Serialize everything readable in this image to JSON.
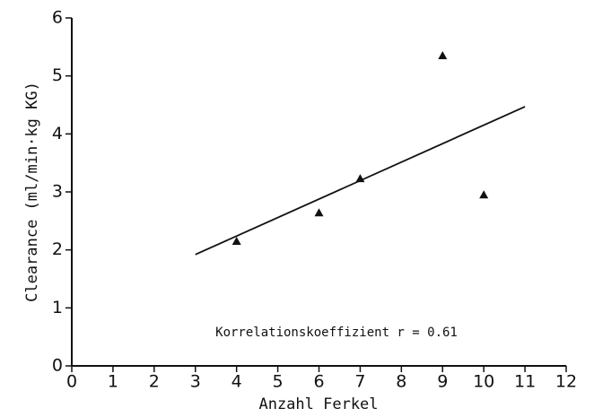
{
  "chart_data": {
    "type": "scatter",
    "x_label": "Anzahl Ferkel",
    "y_label": "Clearance (ml/min·kg KG)",
    "annotation": "Korrelationskoeffizient r = 0.61",
    "x": [
      4,
      6,
      7,
      9,
      10
    ],
    "values": [
      2.15,
      2.64,
      3.23,
      5.35,
      2.95
    ],
    "color": "#111111",
    "trendline": {
      "x": [
        3,
        11
      ],
      "y": [
        1.92,
        4.47
      ]
    },
    "xlim": [
      0,
      12
    ],
    "xticks": [
      0,
      1,
      2,
      3,
      4,
      5,
      6,
      7,
      8,
      9,
      10,
      11,
      12
    ],
    "ylim": [
      0,
      6
    ],
    "yticks": [
      0,
      1,
      2,
      3,
      4,
      5,
      6
    ],
    "grid": false
  }
}
